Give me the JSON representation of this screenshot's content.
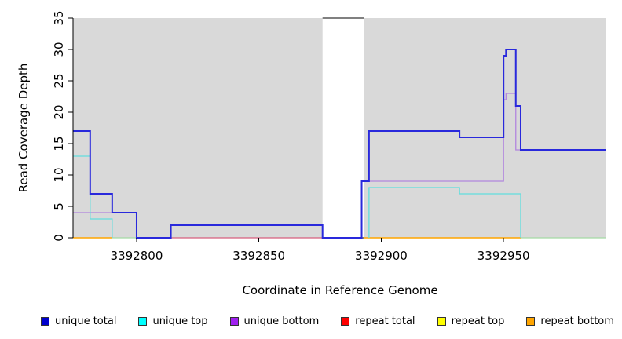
{
  "figure": {
    "plot_bg_color": "#d9d9d9",
    "masked_band_color": "#ffffff"
  },
  "y_axis": {
    "label": "Read Coverage Depth",
    "tick_labels": [
      "0",
      "5",
      "10",
      "15",
      "20",
      "25",
      "30",
      "35"
    ]
  },
  "x_axis": {
    "label": "Coordinate in Reference Genome",
    "tick_labels": [
      "3392800",
      "3392850",
      "3392900",
      "3392950"
    ]
  },
  "legend": {
    "items": [
      {
        "label": "unique total",
        "color": "#0000cd"
      },
      {
        "label": "unique top",
        "color": "#00ffff"
      },
      {
        "label": "unique bottom",
        "color": "#a020f0"
      },
      {
        "label": "repeat total",
        "color": "#ff0000"
      },
      {
        "label": "repeat top",
        "color": "#ffff00"
      },
      {
        "label": "repeat bottom",
        "color": "#ffa500"
      }
    ]
  },
  "chart_data": {
    "type": "line",
    "title": "",
    "xlabel": "Coordinate in Reference Genome",
    "ylabel": "Read Coverage Depth",
    "xlim": [
      3392774,
      3392992
    ],
    "ylim": [
      0,
      35
    ],
    "x_tick_values": [
      3392800,
      3392850,
      3392900,
      3392950
    ],
    "y_tick_values": [
      0,
      5,
      10,
      15,
      20,
      25,
      30,
      35
    ],
    "grid": false,
    "legend_position": "bottom",
    "masked_region": {
      "x1": 3392876,
      "x2": 3392893,
      "top_marker_y": 35,
      "top_marker_color": "#808080",
      "note": "white vertical band; coverage off-scale, capped by gray segment at y=35"
    },
    "series": [
      {
        "name": "repeat total",
        "display_color": "#d65f7e",
        "width": 1.2,
        "paths": [
          [
            [
              3392814,
              0
            ],
            [
              3392876,
              0
            ]
          ]
        ]
      },
      {
        "name": "unique bottom",
        "display_color": "#b286de",
        "width": 1.3,
        "paths": [
          [
            [
              3392774,
              4
            ],
            [
              3392800,
              4
            ],
            [
              3392800,
              0
            ]
          ],
          [
            [
              3392892,
              0
            ],
            [
              3392892,
              9
            ],
            [
              3392950,
              9
            ],
            [
              3392950,
              22
            ],
            [
              3392951,
              22
            ],
            [
              3392951,
              23
            ],
            [
              3392955,
              23
            ],
            [
              3392955,
              14
            ],
            [
              3392992,
              14
            ]
          ]
        ]
      },
      {
        "name": "unique top",
        "display_color": "#62dede",
        "width": 1.3,
        "paths": [
          [
            [
              3392774,
              13
            ],
            [
              3392781,
              13
            ],
            [
              3392781,
              3
            ],
            [
              3392790,
              3
            ],
            [
              3392790,
              0
            ]
          ],
          [
            [
              3392895,
              0
            ],
            [
              3392895,
              8
            ],
            [
              3392932,
              8
            ],
            [
              3392932,
              7
            ],
            [
              3392957,
              7
            ],
            [
              3392957,
              0
            ]
          ]
        ]
      },
      {
        "name": "unique total",
        "display_color": "#2929dc",
        "width": 2,
        "paths": [
          [
            [
              3392774,
              17
            ],
            [
              3392781,
              17
            ],
            [
              3392781,
              7
            ],
            [
              3392790,
              7
            ],
            [
              3392790,
              4
            ],
            [
              3392800,
              4
            ],
            [
              3392800,
              0
            ],
            [
              3392814,
              0
            ],
            [
              3392814,
              2
            ],
            [
              3392876,
              2
            ],
            [
              3392876,
              0
            ],
            [
              3392892,
              0
            ],
            [
              3392892,
              9
            ],
            [
              3392895,
              9
            ],
            [
              3392895,
              17
            ],
            [
              3392932,
              17
            ],
            [
              3392932,
              16
            ],
            [
              3392950,
              16
            ],
            [
              3392950,
              29
            ],
            [
              3392951,
              29
            ],
            [
              3392951,
              30
            ],
            [
              3392955,
              30
            ],
            [
              3392955,
              21
            ],
            [
              3392957,
              21
            ],
            [
              3392957,
              14
            ],
            [
              3392992,
              14
            ]
          ]
        ]
      }
    ],
    "baseline_segments": [
      {
        "series": "repeat bottom",
        "x1": 3392774,
        "x2": 3392790,
        "y": 0,
        "color": "#ffa500",
        "width": 1.5
      },
      {
        "series": "unique top + repeat top overlap",
        "x1": 3392790,
        "x2": 3392800,
        "y": 0,
        "color": "#a4d9a4",
        "width": 1.3
      },
      {
        "series": "repeat bottom",
        "x1": 3392893,
        "x2": 3392957,
        "y": 0,
        "color": "#ffa500",
        "width": 1.5
      },
      {
        "series": "unique top + repeat top overlap",
        "x1": 3392957,
        "x2": 3392992,
        "y": 0,
        "color": "#a4d9a4",
        "width": 1.3
      }
    ]
  }
}
